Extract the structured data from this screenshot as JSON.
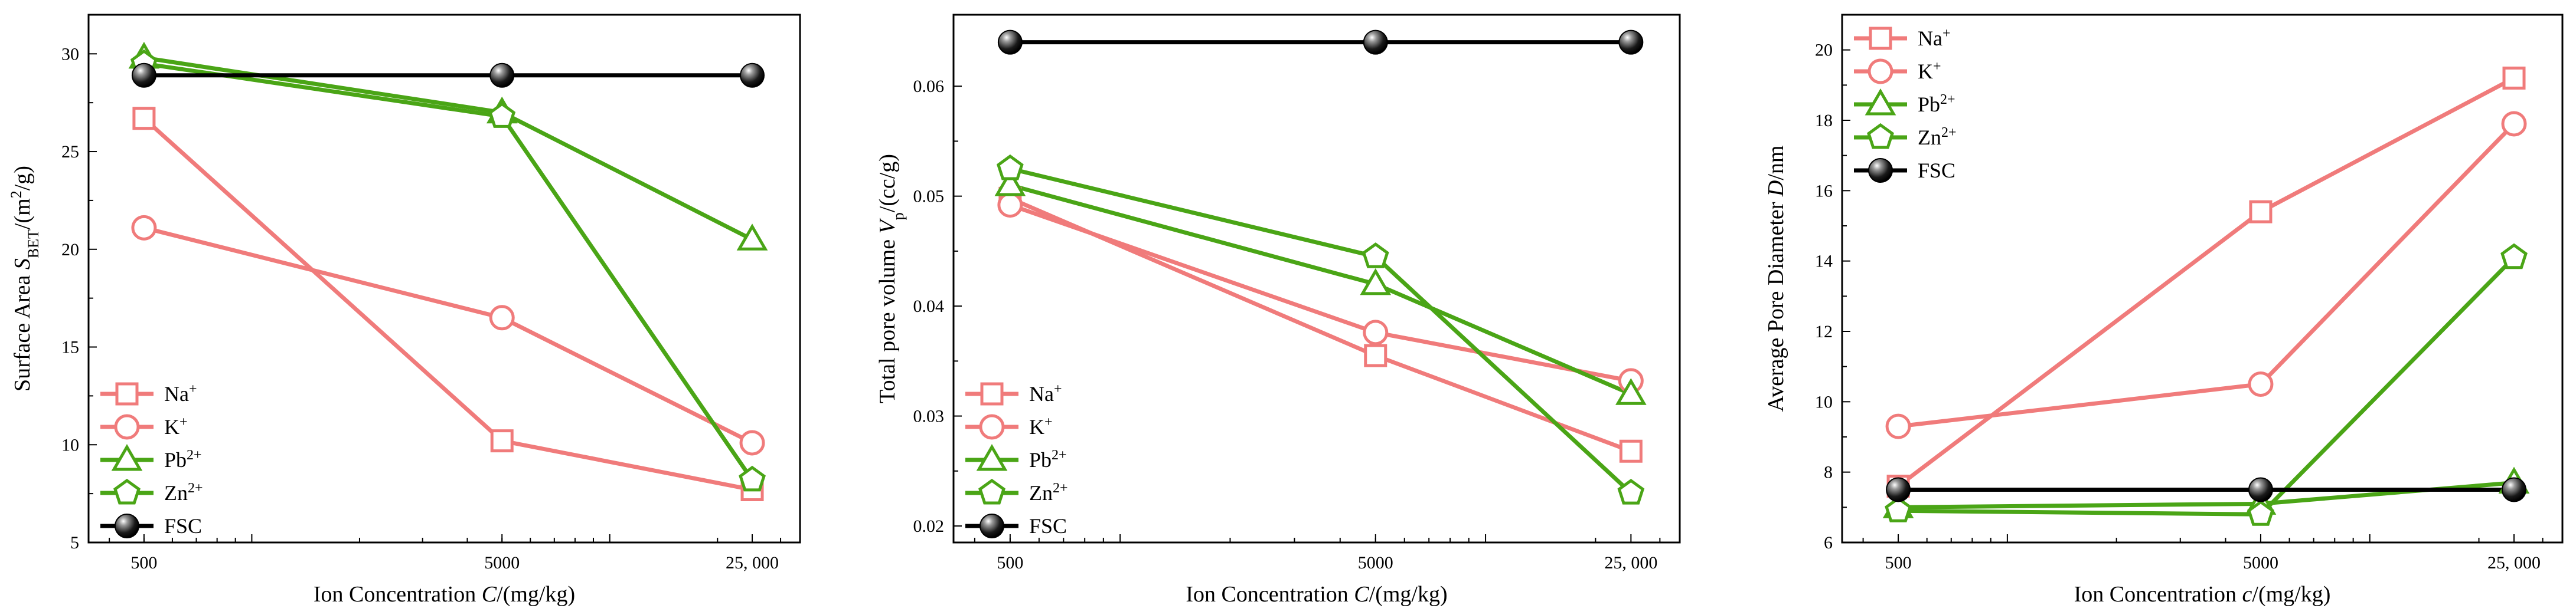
{
  "colors": {
    "Na+": "#f07b7b",
    "K+": "#f07b7b",
    "Pb2+": "#4aa516",
    "Zn2+": "#4aa516",
    "FSC": "#000000"
  },
  "markers": {
    "Na+": "square",
    "K+": "circle",
    "Pb2+": "triangle",
    "Zn2+": "pentagon",
    "FSC": "sphere"
  },
  "legend_labels": [
    {
      "key": "Na+",
      "base": "Na",
      "sup": "+"
    },
    {
      "key": "K+",
      "base": "K",
      "sup": "+"
    },
    {
      "key": "Pb2+",
      "base": "Pb",
      "sup": "2+"
    },
    {
      "key": "Zn2+",
      "base": "Zn",
      "sup": "2+"
    },
    {
      "key": "FSC",
      "base": "FSC",
      "sup": ""
    }
  ],
  "chart_data": [
    {
      "type": "line",
      "x_scale": "log",
      "x": [
        500,
        5000,
        25000
      ],
      "x_tick_labels": [
        "500",
        "5000",
        "25, 000"
      ],
      "xlim": [
        350,
        34000
      ],
      "xlabel": {
        "pre": "Ion Concentration ",
        "var": "C",
        "post": "/(mg/kg)"
      },
      "ylabel": {
        "pre": "Surface Area ",
        "var": "S",
        "sub": "BET",
        "post": "/(m",
        "sup": "2",
        "post2": "/g)"
      },
      "ylim": [
        5,
        32
      ],
      "yticks": [
        5,
        10,
        15,
        20,
        25,
        30
      ],
      "y_tick_labels": [
        "5",
        "10",
        "15",
        "20",
        "25",
        "30"
      ],
      "legend": "bottom-left",
      "series": [
        {
          "name": "Na+",
          "values": [
            26.7,
            10.2,
            7.7
          ]
        },
        {
          "name": "K+",
          "values": [
            21.1,
            16.5,
            10.1
          ]
        },
        {
          "name": "Pb2+",
          "values": [
            29.8,
            27.0,
            20.5
          ]
        },
        {
          "name": "Zn2+",
          "values": [
            29.5,
            26.8,
            8.2
          ]
        },
        {
          "name": "FSC",
          "values": [
            28.9,
            28.9,
            28.9
          ]
        }
      ]
    },
    {
      "type": "line",
      "x_scale": "log",
      "x": [
        500,
        5000,
        25000
      ],
      "x_tick_labels": [
        "500",
        "5000",
        "25, 000"
      ],
      "xlim": [
        350,
        34000
      ],
      "xlabel": {
        "pre": "Ion Concentration ",
        "var": "C",
        "post": "/(mg/kg)"
      },
      "ylabel": {
        "pre": "Total pore volume  ",
        "var": "V",
        "sub": "p",
        "post": "/(cc/g)",
        "sup": "",
        "post2": ""
      },
      "ylim": [
        0.0185,
        0.0665
      ],
      "yticks": [
        0.02,
        0.03,
        0.04,
        0.05,
        0.06
      ],
      "y_tick_labels": [
        "0.02",
        "0.03",
        "0.04",
        "0.05",
        "0.06"
      ],
      "legend": "bottom-left",
      "series": [
        {
          "name": "Na+",
          "values": [
            0.0498,
            0.0355,
            0.0268
          ]
        },
        {
          "name": "K+",
          "values": [
            0.0492,
            0.0376,
            0.0332
          ]
        },
        {
          "name": "Pb2+",
          "values": [
            0.051,
            0.042,
            0.032
          ]
        },
        {
          "name": "Zn2+",
          "values": [
            0.0525,
            0.0445,
            0.023
          ]
        },
        {
          "name": "FSC",
          "values": [
            0.064,
            0.064,
            0.064
          ]
        }
      ]
    },
    {
      "type": "line",
      "x_scale": "log",
      "x": [
        500,
        5000,
        25000
      ],
      "x_tick_labels": [
        "500",
        "5000",
        "25, 000"
      ],
      "xlim": [
        350,
        34000
      ],
      "xlabel": {
        "pre": "Ion Concentration ",
        "var": "c",
        "post": "/(mg/kg)"
      },
      "ylabel": {
        "pre": "Average Pore Diameter  ",
        "var": "D",
        "sub": "",
        "post": "/nm",
        "sup": "",
        "post2": ""
      },
      "ylim": [
        6,
        21
      ],
      "yticks": [
        6,
        8,
        10,
        12,
        14,
        16,
        18,
        20
      ],
      "y_tick_labels": [
        "6",
        "8",
        "10",
        "12",
        "14",
        "16",
        "18",
        "20"
      ],
      "legend": "top-left",
      "series": [
        {
          "name": "Na+",
          "values": [
            7.6,
            15.4,
            19.2
          ]
        },
        {
          "name": "K+",
          "values": [
            9.3,
            10.5,
            17.9
          ]
        },
        {
          "name": "Pb2+",
          "values": [
            7.0,
            7.1,
            7.7
          ]
        },
        {
          "name": "Zn2+",
          "values": [
            6.9,
            6.8,
            14.1
          ]
        },
        {
          "name": "FSC",
          "values": [
            7.5,
            7.5,
            7.5
          ]
        }
      ]
    }
  ]
}
